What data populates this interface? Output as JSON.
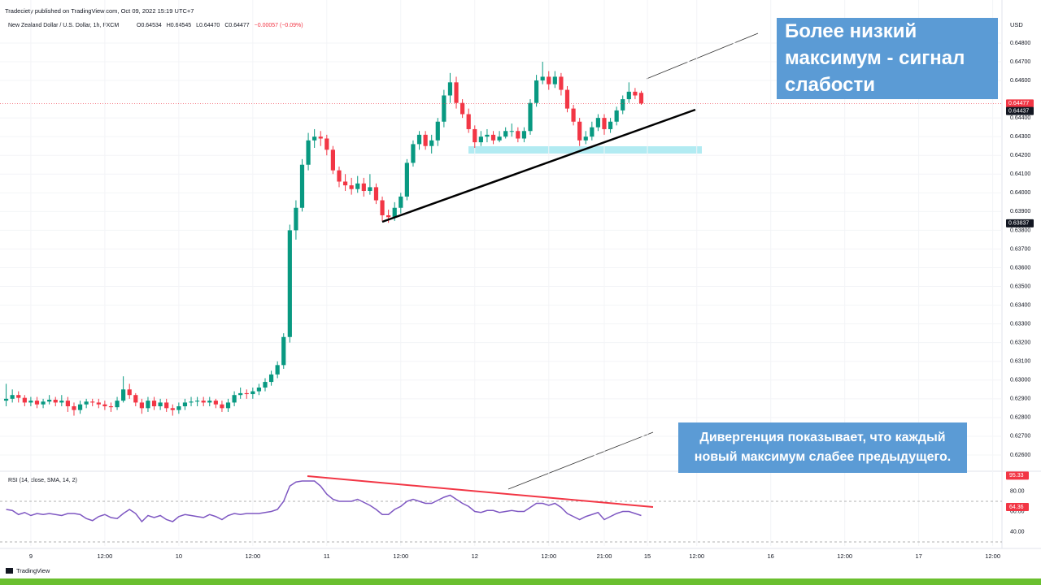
{
  "header": {
    "publisher": "Tradeciety published on TradingView.com, Oct 09, 2022 15:19 UTC+7",
    "symbol": "New Zealand Dollar / U.S. Dollar, 1h, FXCM",
    "ohlc": [
      "O0.64534",
      "H0.64545",
      "L0.64470",
      "C0.64477",
      "−0.00057 (−0.09%)"
    ]
  },
  "footer": {
    "logo": "TradingView"
  },
  "annotations": [
    "Более низкий максимум - сигнал слабости",
    "Дивергенция показывает, что каждый новый максимум слабее предыдущего."
  ],
  "chart_data": [
    {
      "type": "candlestick",
      "currency": "USD",
      "up_color": "#089981",
      "down_color": "#f23645",
      "open": [
        0.6289,
        0.629,
        0.6292,
        0.62905,
        0.6288,
        0.6289,
        0.6287,
        0.62885,
        0.62895,
        0.6288,
        0.6289,
        0.6286,
        0.6284,
        0.6287,
        0.62885,
        0.6288,
        0.6287,
        0.6286,
        0.62855,
        0.6289,
        0.6295,
        0.6292,
        0.6288,
        0.6285,
        0.6289,
        0.6286,
        0.6288,
        0.6285,
        0.6284,
        0.6286,
        0.6288,
        0.62885,
        0.6289,
        0.6288,
        0.6289,
        0.6287,
        0.6285,
        0.6288,
        0.6292,
        0.6293,
        0.62925,
        0.6294,
        0.6296,
        0.6299,
        0.6303,
        0.6308,
        0.6323,
        0.638,
        0.6392,
        0.6415,
        0.6428,
        0.643,
        0.6429,
        0.6423,
        0.6412,
        0.6406,
        0.6404,
        0.6402,
        0.6405,
        0.6401,
        0.6403,
        0.6396,
        0.6388,
        0.6387,
        0.6392,
        0.6398,
        0.6416,
        0.6426,
        0.6431,
        0.6425,
        0.6428,
        0.6438,
        0.6452,
        0.6459,
        0.6448,
        0.6442,
        0.6434,
        0.6427,
        0.643,
        0.6431,
        0.6428,
        0.643,
        0.6433,
        0.6433,
        0.6429,
        0.6433,
        0.6448,
        0.646,
        0.6462,
        0.6458,
        0.6462,
        0.6455,
        0.6445,
        0.6438,
        0.6428,
        0.643,
        0.6435,
        0.644,
        0.6434,
        0.6438,
        0.6444,
        0.645,
        0.6454,
        0.64534
      ],
      "high": [
        0.6298,
        0.6295,
        0.6294,
        0.6292,
        0.6291,
        0.6291,
        0.629,
        0.6292,
        0.6291,
        0.6292,
        0.6291,
        0.6288,
        0.6289,
        0.629,
        0.629,
        0.629,
        0.6289,
        0.6288,
        0.6291,
        0.6302,
        0.6298,
        0.6293,
        0.629,
        0.6291,
        0.6291,
        0.629,
        0.629,
        0.6287,
        0.6288,
        0.629,
        0.6291,
        0.6291,
        0.6291,
        0.6291,
        0.629,
        0.6289,
        0.629,
        0.6294,
        0.6296,
        0.6295,
        0.6296,
        0.6298,
        0.6301,
        0.6305,
        0.631,
        0.6325,
        0.6383,
        0.6396,
        0.6418,
        0.6432,
        0.6434,
        0.6433,
        0.6431,
        0.6425,
        0.6414,
        0.641,
        0.6408,
        0.6409,
        0.6408,
        0.641,
        0.6405,
        0.6398,
        0.6391,
        0.6395,
        0.64,
        0.6418,
        0.6428,
        0.6433,
        0.6433,
        0.6431,
        0.644,
        0.6455,
        0.6464,
        0.6462,
        0.645,
        0.6445,
        0.6436,
        0.6433,
        0.6434,
        0.6433,
        0.6433,
        0.6435,
        0.6437,
        0.6435,
        0.6435,
        0.645,
        0.6463,
        0.647,
        0.6465,
        0.6465,
        0.6464,
        0.6457,
        0.6447,
        0.644,
        0.6433,
        0.6438,
        0.6442,
        0.6442,
        0.644,
        0.6446,
        0.6452,
        0.6459,
        0.6456,
        0.64545
      ],
      "low": [
        0.6286,
        0.6288,
        0.6288,
        0.6286,
        0.6286,
        0.6285,
        0.6285,
        0.6287,
        0.6286,
        0.6286,
        0.6283,
        0.6281,
        0.6282,
        0.6285,
        0.6286,
        0.6285,
        0.6284,
        0.6283,
        0.6284,
        0.6288,
        0.629,
        0.6286,
        0.6282,
        0.6283,
        0.6284,
        0.6284,
        0.6283,
        0.6281,
        0.6282,
        0.6284,
        0.6286,
        0.6286,
        0.6286,
        0.6286,
        0.6285,
        0.6283,
        0.6283,
        0.6286,
        0.629,
        0.629,
        0.629,
        0.6292,
        0.6294,
        0.6297,
        0.6301,
        0.6306,
        0.632,
        0.6375,
        0.639,
        0.6412,
        0.6424,
        0.6425,
        0.642,
        0.641,
        0.6403,
        0.6401,
        0.6399,
        0.64,
        0.6398,
        0.6399,
        0.6394,
        0.6385,
        0.6384,
        0.6385,
        0.6389,
        0.6396,
        0.6414,
        0.6423,
        0.6423,
        0.6421,
        0.6425,
        0.6435,
        0.6448,
        0.6445,
        0.644,
        0.6432,
        0.6424,
        0.6425,
        0.6427,
        0.6426,
        0.6427,
        0.6429,
        0.643,
        0.6427,
        0.6427,
        0.6431,
        0.6446,
        0.6458,
        0.6455,
        0.6456,
        0.6452,
        0.6443,
        0.6436,
        0.6425,
        0.6426,
        0.6428,
        0.6433,
        0.6431,
        0.6432,
        0.6436,
        0.6442,
        0.6448,
        0.645,
        0.6447
      ],
      "close": [
        0.629,
        0.6292,
        0.62905,
        0.6288,
        0.6289,
        0.6287,
        0.62885,
        0.62895,
        0.6288,
        0.6289,
        0.6286,
        0.6284,
        0.6287,
        0.62885,
        0.6288,
        0.6287,
        0.6286,
        0.62855,
        0.6289,
        0.6295,
        0.6292,
        0.6288,
        0.6285,
        0.6289,
        0.6286,
        0.6288,
        0.6285,
        0.6284,
        0.6286,
        0.6288,
        0.62885,
        0.6289,
        0.6288,
        0.6289,
        0.6287,
        0.6285,
        0.6288,
        0.6292,
        0.6293,
        0.62925,
        0.6294,
        0.6296,
        0.6299,
        0.6303,
        0.6308,
        0.6323,
        0.638,
        0.6392,
        0.6415,
        0.6428,
        0.643,
        0.6429,
        0.6423,
        0.6412,
        0.6406,
        0.6404,
        0.6402,
        0.6405,
        0.6401,
        0.6403,
        0.6396,
        0.6388,
        0.6387,
        0.6392,
        0.6398,
        0.6416,
        0.6426,
        0.6431,
        0.6425,
        0.6428,
        0.6438,
        0.6452,
        0.6459,
        0.6448,
        0.6442,
        0.6434,
        0.6427,
        0.643,
        0.6431,
        0.6428,
        0.643,
        0.6433,
        0.6433,
        0.6429,
        0.6433,
        0.6448,
        0.646,
        0.6462,
        0.6458,
        0.6462,
        0.6455,
        0.6445,
        0.6438,
        0.6428,
        0.643,
        0.6435,
        0.644,
        0.6434,
        0.6438,
        0.6444,
        0.645,
        0.6454,
        0.6452,
        0.64477
      ],
      "xlim": [
        -1,
        161.5
      ],
      "xticks": [
        {
          "value": 4,
          "label": "9"
        },
        {
          "value": 16,
          "label": "12:00"
        },
        {
          "value": 28,
          "label": "10"
        },
        {
          "value": 40,
          "label": "12:00"
        },
        {
          "value": 52,
          "label": "11"
        },
        {
          "value": 64,
          "label": "12:00"
        },
        {
          "value": 76,
          "label": "12"
        },
        {
          "value": 88,
          "label": "12:00"
        },
        {
          "value": 97,
          "label": "21:00"
        },
        {
          "value": 104,
          "label": "15"
        },
        {
          "value": 112,
          "label": "12:00"
        },
        {
          "value": 124,
          "label": "16"
        },
        {
          "value": 136,
          "label": "12:00"
        },
        {
          "value": 148,
          "label": "17"
        },
        {
          "value": 160,
          "label": "12:00"
        }
      ],
      "ylim": [
        0.62513,
        0.64943
      ],
      "yticks": [
        {
          "value": 0.626,
          "label": "0.62600"
        },
        {
          "value": 0.627,
          "label": "0.62700"
        },
        {
          "value": 0.628,
          "label": "0.62800"
        },
        {
          "value": 0.629,
          "label": "0.62900"
        },
        {
          "value": 0.63,
          "label": "0.63000"
        },
        {
          "value": 0.631,
          "label": "0.63100"
        },
        {
          "value": 0.632,
          "label": "0.63200"
        },
        {
          "value": 0.633,
          "label": "0.63300"
        },
        {
          "value": 0.634,
          "label": "0.63400"
        },
        {
          "value": 0.635,
          "label": "0.63500"
        },
        {
          "value": 0.636,
          "label": "0.63600"
        },
        {
          "value": 0.637,
          "label": "0.63700"
        },
        {
          "value": 0.638,
          "label": "0.63800"
        },
        {
          "value": 0.639,
          "label": "0.63900"
        },
        {
          "value": 0.64,
          "label": "0.64000"
        },
        {
          "value": 0.641,
          "label": "0.64100"
        },
        {
          "value": 0.642,
          "label": "0.64200"
        },
        {
          "value": 0.643,
          "label": "0.64300"
        },
        {
          "value": 0.644,
          "label": "0.64400"
        },
        {
          "value": 0.646,
          "label": "0.64600"
        },
        {
          "value": 0.647,
          "label": "0.64700"
        },
        {
          "value": 0.648,
          "label": "0.64800"
        }
      ],
      "price_tags": [
        {
          "value": 0.64477,
          "label": "0.64477",
          "color": "#f23645",
          "line": true
        },
        {
          "value": 0.64437,
          "label": "0.64437",
          "color": "#131722",
          "line": false
        },
        {
          "value": 0.63837,
          "label": "0.63837",
          "color": "#131722",
          "line": false
        }
      ]
    },
    {
      "type": "line",
      "title": "RSI (14, close, SMA, 14, 2)",
      "color": "#7e57c2",
      "values": [
        62,
        61,
        57,
        59,
        56,
        58,
        57,
        58,
        57,
        56,
        58,
        58,
        57,
        53,
        51,
        55,
        57,
        54,
        53,
        58,
        62,
        58,
        50,
        56,
        54,
        56,
        52,
        50,
        55,
        57,
        56,
        55,
        54,
        57,
        55,
        52,
        56,
        58,
        57,
        58,
        58,
        58,
        59,
        60,
        62,
        70,
        85,
        89,
        90,
        90,
        90,
        85,
        77,
        72,
        70,
        70,
        70,
        72,
        69,
        66,
        62,
        57,
        57,
        62,
        65,
        70,
        72,
        70,
        68,
        68,
        71,
        74,
        76,
        72,
        68,
        65,
        60,
        59,
        61,
        61,
        59,
        60,
        61,
        60,
        60,
        64,
        68,
        68,
        66,
        68,
        64,
        58,
        55,
        52,
        55,
        57,
        59,
        52,
        55,
        58,
        60,
        60,
        58,
        56
      ],
      "ylim": [
        26,
        98
      ],
      "yticks": [
        {
          "value": 40,
          "label": "40.00"
        },
        {
          "value": 60,
          "label": "60.00"
        },
        {
          "value": 80,
          "label": "80.00"
        }
      ],
      "bands": [
        70,
        30
      ],
      "tags": [
        {
          "value": 95.33,
          "label": "95.33"
        },
        {
          "value": 64.36,
          "label": "64.36"
        }
      ]
    }
  ]
}
